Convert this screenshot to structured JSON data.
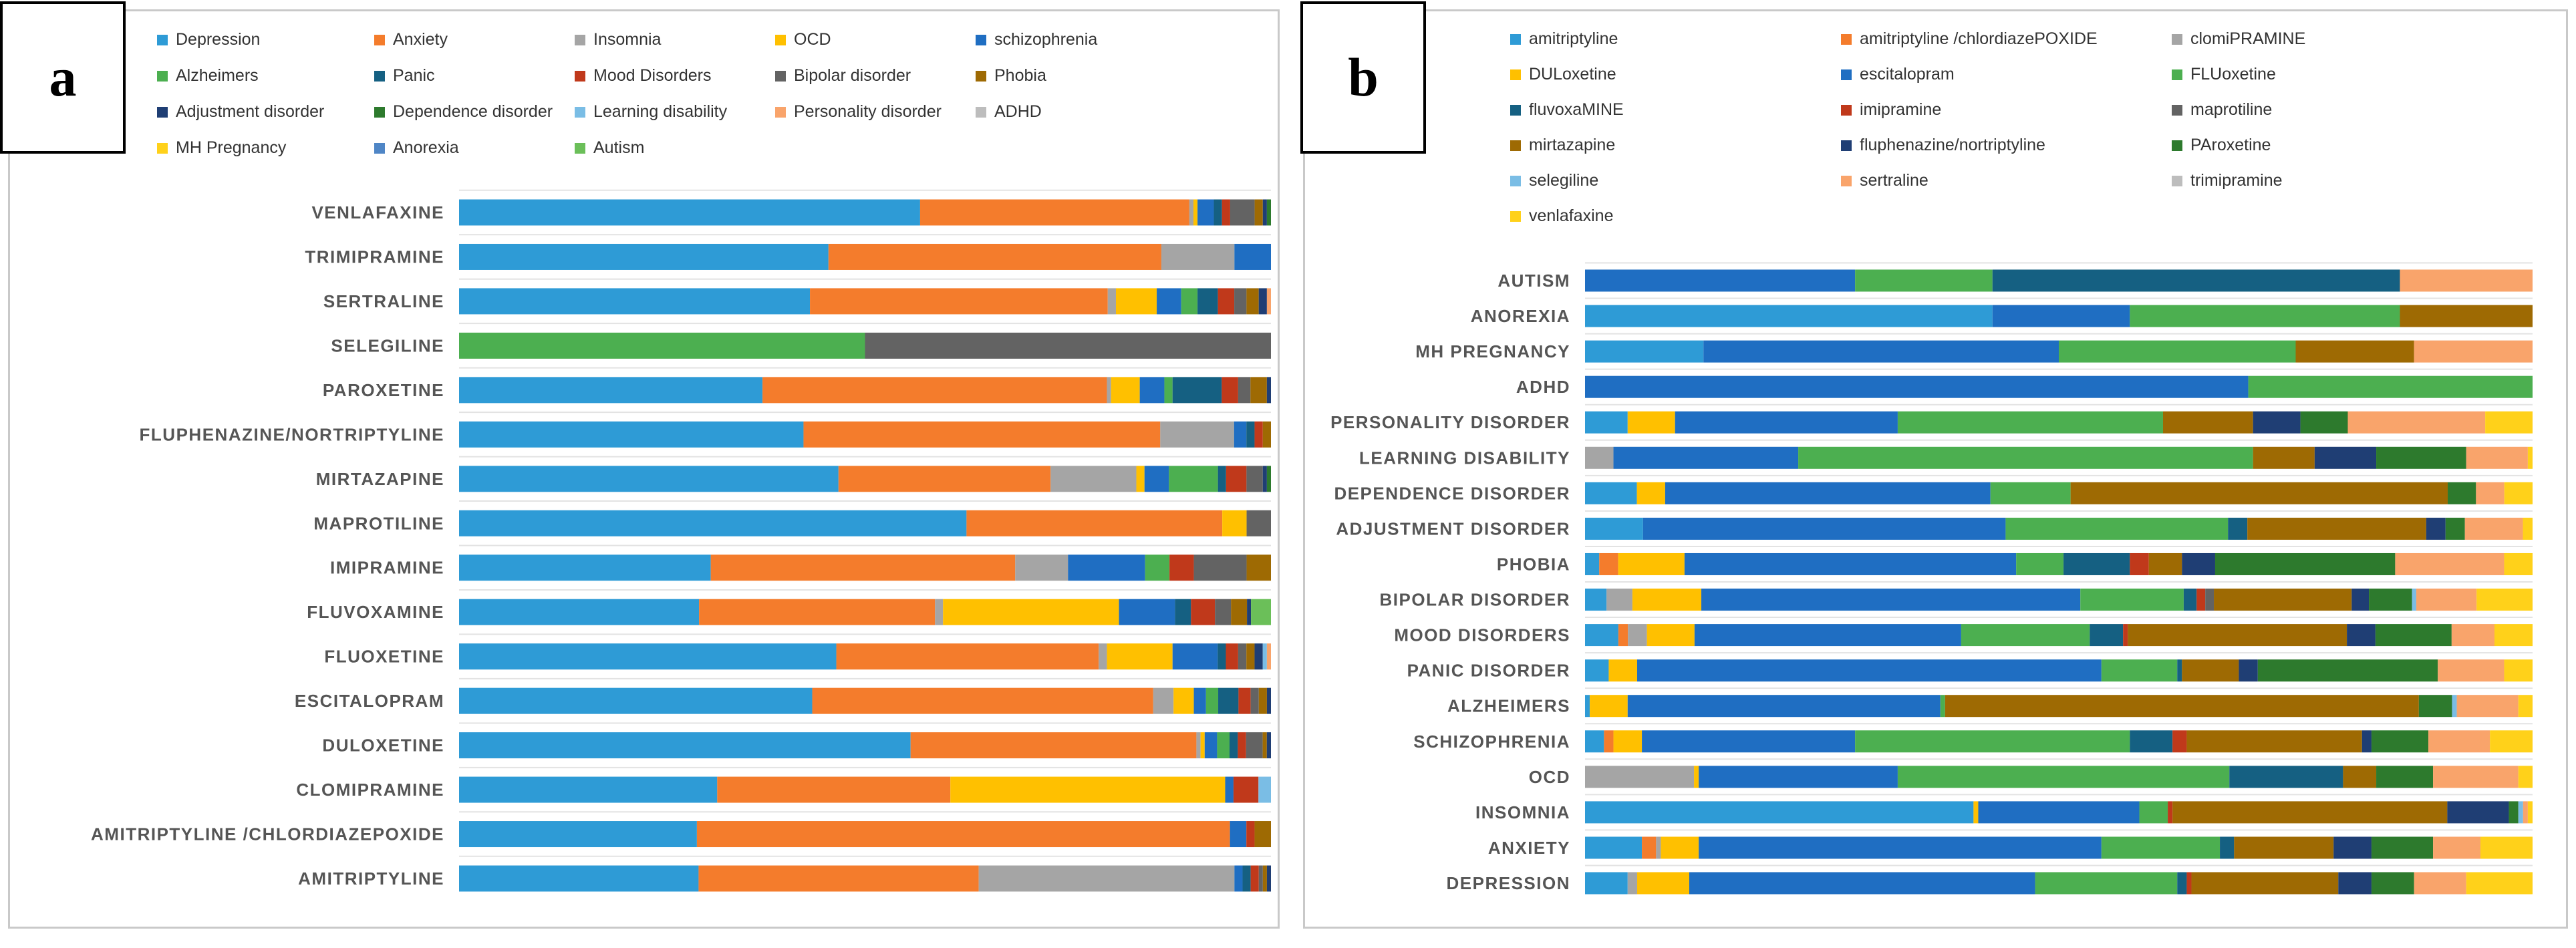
{
  "panel_a": {
    "label": "a"
  },
  "panel_b": {
    "label": "b"
  },
  "chart_data": [
    {
      "type": "bar",
      "orientation": "horizontal",
      "stacked": "100%",
      "panel": "a",
      "title": "",
      "xlabel": "",
      "ylabel": "",
      "legend_position": "top",
      "categories": [
        "VENLAFAXINE",
        "TRIMIPRAMINE",
        "SERTRALINE",
        "SELEGILINE",
        "PAROXETINE",
        "FLUPHENAZINE/NORTRIPTYLINE",
        "MIRTAZAPINE",
        "MAPROTILINE",
        "IMIPRAMINE",
        "FLUVOXAMINE",
        "FLUOXETINE",
        "ESCITALOPRAM",
        "DULOXETINE",
        "CLOMIPRAMINE",
        "AMITRIPTYLINE /CHLORDIAZEPOXIDE",
        "AMITRIPTYLINE"
      ],
      "series": [
        {
          "name": "Depression",
          "color": "#2E9BD6",
          "values": [
            56.5,
            45.5,
            43,
            0,
            37,
            42,
            46.5,
            62.5,
            31,
            30,
            46,
            43.5,
            54.5,
            31,
            29,
            29.5
          ]
        },
        {
          "name": "Anxiety",
          "color": "#F47C2C",
          "values": [
            33,
            41,
            36.5,
            0,
            42,
            43.5,
            26,
            31.5,
            37.5,
            29.5,
            32,
            42,
            34.5,
            28,
            65,
            34.5
          ]
        },
        {
          "name": "Insomnia",
          "color": "#A5A5A5",
          "values": [
            0.5,
            9,
            1,
            0,
            0.5,
            9,
            10.5,
            0,
            6.5,
            1,
            1,
            2.5,
            0.5,
            0,
            0,
            31.5
          ]
        },
        {
          "name": "OCD",
          "color": "#FFC000",
          "values": [
            0.5,
            0,
            5,
            0,
            3.5,
            0,
            1,
            3,
            0,
            22,
            8,
            2.5,
            0.5,
            33,
            0,
            0
          ]
        },
        {
          "name": "schizophrenia",
          "color": "#1F6EC2",
          "values": [
            2,
            4.5,
            3,
            0,
            3,
            1.5,
            3,
            0,
            9.5,
            7,
            5.5,
            1.5,
            1.5,
            1,
            2,
            1
          ]
        },
        {
          "name": "Alzheimers",
          "color": "#4CAF50",
          "values": [
            0,
            0,
            2,
            50,
            1,
            0,
            6,
            0,
            3,
            0,
            0,
            1.5,
            1.5,
            0,
            0,
            0
          ]
        },
        {
          "name": "Panic",
          "color": "#156082",
          "values": [
            1,
            0,
            2.5,
            0,
            6,
            1,
            1,
            0,
            0,
            2,
            1,
            2.5,
            1,
            0,
            0,
            1
          ]
        },
        {
          "name": "Mood Disorders",
          "color": "#C0391B",
          "values": [
            1,
            0,
            2,
            0,
            2,
            1,
            2.5,
            0,
            3,
            3,
            1.5,
            1.5,
            1,
            3,
            1,
            1
          ]
        },
        {
          "name": "Bipolar disorder",
          "color": "#636363",
          "values": [
            3,
            0,
            1.5,
            50,
            1.5,
            0,
            2,
            3,
            6.5,
            2,
            1,
            1,
            2,
            0,
            0,
            0.5
          ]
        },
        {
          "name": "Phobia",
          "color": "#9E6A03",
          "values": [
            1,
            0,
            1.5,
            0,
            2,
            1,
            0,
            0,
            3,
            2,
            1,
            1,
            0.5,
            0,
            2,
            0.5
          ]
        },
        {
          "name": "Adjustment disorder",
          "color": "#1F3E74",
          "values": [
            0.5,
            0,
            1,
            0,
            0.5,
            0,
            0.5,
            0,
            0,
            0.5,
            1,
            0.5,
            0.5,
            0,
            0,
            0.5
          ]
        },
        {
          "name": "Dependence disorder",
          "color": "#2D7A2D",
          "values": [
            0.5,
            0,
            0,
            0,
            0,
            0,
            0.5,
            0,
            0,
            0,
            0,
            0,
            0,
            0,
            0,
            0
          ]
        },
        {
          "name": "Learning disability",
          "color": "#7ABDE5",
          "values": [
            0,
            0,
            0,
            0,
            0,
            0,
            0,
            0,
            0,
            0,
            0.5,
            0,
            0,
            1.5,
            0,
            0
          ]
        },
        {
          "name": "Personality disorder",
          "color": "#F9A46B",
          "values": [
            0,
            0,
            0.5,
            0,
            0,
            0,
            0,
            0,
            0,
            0,
            0.5,
            0,
            0,
            0,
            0,
            0
          ]
        },
        {
          "name": "ADHD",
          "color": "#BDBDBD",
          "values": [
            0,
            0,
            0,
            0,
            0,
            0,
            0,
            0,
            0,
            0,
            0,
            0,
            0,
            0,
            0,
            0
          ]
        },
        {
          "name": "MH Pregnancy",
          "color": "#FFD11A",
          "values": [
            0,
            0,
            0,
            0,
            0,
            0,
            0,
            0,
            0,
            0,
            0,
            0,
            0,
            0,
            0,
            0
          ]
        },
        {
          "name": "Anorexia",
          "color": "#4F86C6",
          "values": [
            0,
            0,
            0,
            0,
            0,
            0,
            0,
            0,
            0,
            0,
            0,
            0,
            0,
            0,
            0,
            0
          ]
        },
        {
          "name": "Autism",
          "color": "#6BBF59",
          "values": [
            0,
            0,
            0,
            0,
            0,
            0,
            0,
            0,
            0,
            2.5,
            0,
            0,
            0,
            0,
            0,
            0
          ]
        }
      ]
    },
    {
      "type": "bar",
      "orientation": "horizontal",
      "stacked": "100%",
      "panel": "b",
      "title": "",
      "xlabel": "",
      "ylabel": "",
      "legend_position": "top",
      "categories": [
        "AUTISM",
        "ANOREXIA",
        "MH PREGNANCY",
        "ADHD",
        "PERSONALITY DISORDER",
        "LEARNING DISABILITY",
        "DEPENDENCE DISORDER",
        "ADJUSTMENT DISORDER",
        "PHOBIA",
        "BIPOLAR DISORDER",
        "MOOD DISORDERS",
        "PANIC DISORDER",
        "ALZHEIMERS",
        "SCHIZOPHRENIA",
        "OCD",
        "INSOMNIA",
        "ANXIETY",
        "DEPRESSION"
      ],
      "series": [
        {
          "name": "amitriptyline",
          "color": "#2E9BD6",
          "values": [
            0,
            43,
            12.5,
            0,
            4.5,
            0,
            5.5,
            6,
            1.5,
            2.5,
            3.5,
            2.5,
            0.5,
            2,
            0,
            41,
            6,
            4.5
          ]
        },
        {
          "name": "amitriptyline /chlordiazePOXIDE",
          "color": "#F47C2C",
          "values": [
            0,
            0,
            0,
            0,
            0,
            0,
            0,
            0,
            2,
            0,
            1,
            0,
            0,
            1,
            0,
            0,
            1.5,
            0
          ]
        },
        {
          "name": "clomiPRAMINE",
          "color": "#A5A5A5",
          "values": [
            0,
            0,
            0,
            0,
            0,
            3,
            0,
            0,
            0,
            3,
            2,
            0,
            0,
            0,
            11.5,
            0,
            0.5,
            1
          ]
        },
        {
          "name": "DULoxetine",
          "color": "#FFC000",
          "values": [
            0,
            0,
            0,
            0,
            5,
            0,
            3,
            0,
            7,
            8,
            5,
            3,
            4,
            3,
            0.5,
            0.5,
            4,
            5.5
          ]
        },
        {
          "name": "escitalopram",
          "color": "#1F6EC2",
          "values": [
            28.5,
            14.5,
            37.5,
            70,
            23.5,
            19.5,
            34.5,
            37.5,
            35,
            44,
            28,
            49,
            33,
            22.5,
            21,
            17,
            42.5,
            36.5
          ]
        },
        {
          "name": "FLUoxetine",
          "color": "#4CAF50",
          "values": [
            14.5,
            28.5,
            25,
            30,
            28,
            48,
            8.5,
            23,
            5,
            12,
            13.5,
            8,
            0.5,
            29,
            35,
            3,
            12.5,
            15
          ]
        },
        {
          "name": "fluvoxaMINE",
          "color": "#156082",
          "values": [
            43,
            0,
            0,
            0,
            0,
            0,
            0,
            2,
            7,
            1.5,
            3.5,
            0.5,
            0,
            4.5,
            12,
            0,
            1.5,
            1
          ]
        },
        {
          "name": "imipramine",
          "color": "#C0391B",
          "values": [
            0,
            0,
            0,
            0,
            0,
            0,
            0,
            0,
            2,
            1,
            0.5,
            0,
            0,
            1.5,
            0,
            0.5,
            0,
            0.5
          ]
        },
        {
          "name": "maprotiline",
          "color": "#636363",
          "values": [
            0,
            0,
            0,
            0,
            0,
            0,
            0,
            0,
            0,
            1,
            0,
            0,
            0,
            0,
            0,
            0,
            0,
            0
          ]
        },
        {
          "name": "mirtazapine",
          "color": "#9E6A03",
          "values": [
            0,
            14,
            12.5,
            0,
            9.5,
            6.5,
            40,
            18.5,
            3.5,
            16,
            23,
            6,
            50,
            18.5,
            3.5,
            29,
            10.5,
            15.5
          ]
        },
        {
          "name": "fluphenazine/nortriptyline",
          "color": "#1F3E74",
          "values": [
            0,
            0,
            0,
            0,
            5,
            6.5,
            0,
            2,
            3.5,
            2,
            3,
            2,
            0,
            1,
            0,
            6.5,
            4,
            3.5
          ]
        },
        {
          "name": "PAroxetine",
          "color": "#2D7A2D",
          "values": [
            0,
            0,
            0,
            0,
            5,
            9.5,
            3,
            2,
            19,
            5,
            8,
            19,
            3.5,
            6,
            6,
            1,
            6.5,
            4.5
          ]
        },
        {
          "name": "selegiline",
          "color": "#7ABDE5",
          "values": [
            0,
            0,
            0,
            0,
            0,
            0,
            0,
            0,
            0,
            0.5,
            0,
            0,
            0.5,
            0,
            0,
            0.5,
            0,
            0
          ]
        },
        {
          "name": "sertraline",
          "color": "#F9A46B",
          "values": [
            14,
            0,
            12.5,
            0,
            14.5,
            6.5,
            3,
            6,
            11.5,
            7,
            4.5,
            7,
            6.5,
            6.5,
            9,
            0.5,
            5,
            5.5
          ]
        },
        {
          "name": "trimipramine",
          "color": "#BDBDBD",
          "values": [
            0,
            0,
            0,
            0,
            0,
            0,
            0,
            0,
            0,
            0,
            0,
            0,
            0,
            0,
            0,
            0,
            0,
            0
          ]
        },
        {
          "name": "venlafaxine",
          "color": "#FFD11A",
          "values": [
            0,
            0,
            0,
            0,
            5,
            0.5,
            3,
            1,
            3,
            6.5,
            4,
            3,
            1.5,
            4.5,
            1.5,
            0.5,
            5.5,
            7
          ]
        }
      ]
    }
  ]
}
